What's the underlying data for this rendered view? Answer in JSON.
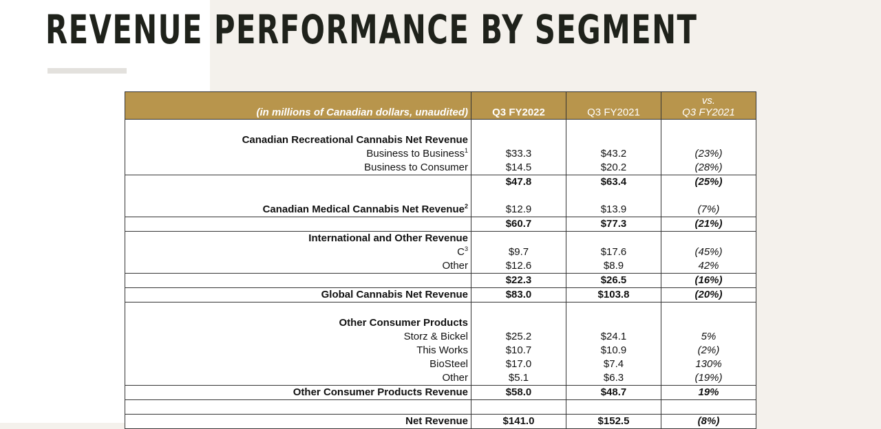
{
  "title": "REVENUE PERFORMANCE BY SEGMENT",
  "table": {
    "header": {
      "unit_note": "(in millions of Canadian dollars, unaudited)",
      "col1": "Q3 FY2022",
      "col2": "Q3 FY2021",
      "col3_line1": "vs.",
      "col3_line2": "Q3 FY2021"
    },
    "rows": [
      {
        "label": "",
        "v1": "",
        "v2": "",
        "v3": "",
        "style": "blank",
        "bt": false
      },
      {
        "label": "Canadian Recreational Cannabis Net Revenue",
        "v1": "",
        "v2": "",
        "v3": "",
        "style": "hbold",
        "bt": false
      },
      {
        "label": "Business to Business",
        "sup": "1",
        "v1": "$33.3",
        "v2": "$43.2",
        "v3": "(23%)",
        "style": "normal",
        "bt": false
      },
      {
        "label": "Business to Consumer",
        "v1": "$14.5",
        "v2": "$20.2",
        "v3": "(28%)",
        "style": "normal",
        "bt": false
      },
      {
        "label": "",
        "v1": "$47.8",
        "v2": "$63.4",
        "v3": "(25%)",
        "style": "bold",
        "bt": true
      },
      {
        "label": "",
        "v1": "",
        "v2": "",
        "v3": "",
        "style": "blank",
        "bt": false
      },
      {
        "label": "Canadian Medical Cannabis Net Revenue",
        "sup": "2",
        "v1": "$12.9",
        "v2": "$13.9",
        "v3": "(7%)",
        "style": "hbold",
        "bt": false
      },
      {
        "label": "",
        "v1": "$60.7",
        "v2": "$77.3",
        "v3": "(21%)",
        "style": "bold",
        "bt": true
      },
      {
        "label": "International and Other Revenue",
        "v1": "",
        "v2": "",
        "v3": "",
        "style": "hbold",
        "bt": true
      },
      {
        "label": "C",
        "sup": "3",
        "v1": "$9.7",
        "v2": "$17.6",
        "v3": "(45%)",
        "style": "normal",
        "bt": false
      },
      {
        "label": "Other",
        "v1": "$12.6",
        "v2": "$8.9",
        "v3": "42%",
        "style": "normal",
        "bt": false
      },
      {
        "label": "",
        "v1": "$22.3",
        "v2": "$26.5",
        "v3": "(16%)",
        "style": "bold",
        "bt": true
      },
      {
        "label": "Global Cannabis Net Revenue",
        "v1": "$83.0",
        "v2": "$103.8",
        "v3": "(20%)",
        "style": "bold",
        "bt": true
      },
      {
        "label": "",
        "v1": "",
        "v2": "",
        "v3": "",
        "style": "blank",
        "bt": true
      },
      {
        "label": "Other Consumer Products",
        "v1": "",
        "v2": "",
        "v3": "",
        "style": "hbold",
        "bt": false
      },
      {
        "label": "Storz & Bickel",
        "v1": "$25.2",
        "v2": "$24.1",
        "v3": "5%",
        "style": "normal",
        "bt": false
      },
      {
        "label": "This Works",
        "v1": "$10.7",
        "v2": "$10.9",
        "v3": "(2%)",
        "style": "normal",
        "bt": false
      },
      {
        "label": "BioSteel",
        "v1": "$17.0",
        "v2": "$7.4",
        "v3": "130%",
        "style": "normal",
        "bt": false
      },
      {
        "label": "Other",
        "v1": "$5.1",
        "v2": "$6.3",
        "v3": "(19%)",
        "style": "normal",
        "bt": false
      },
      {
        "label": "Other Consumer Products Revenue",
        "v1": "$58.0",
        "v2": "$48.7",
        "v3": "19%",
        "style": "bold",
        "bt": true
      },
      {
        "label": "",
        "v1": "",
        "v2": "",
        "v3": "",
        "style": "blank",
        "bt": true
      },
      {
        "label": "Net Revenue",
        "v1": "$141.0",
        "v2": "$152.5",
        "v3": "(8%)",
        "style": "bold",
        "bt": true
      }
    ]
  }
}
